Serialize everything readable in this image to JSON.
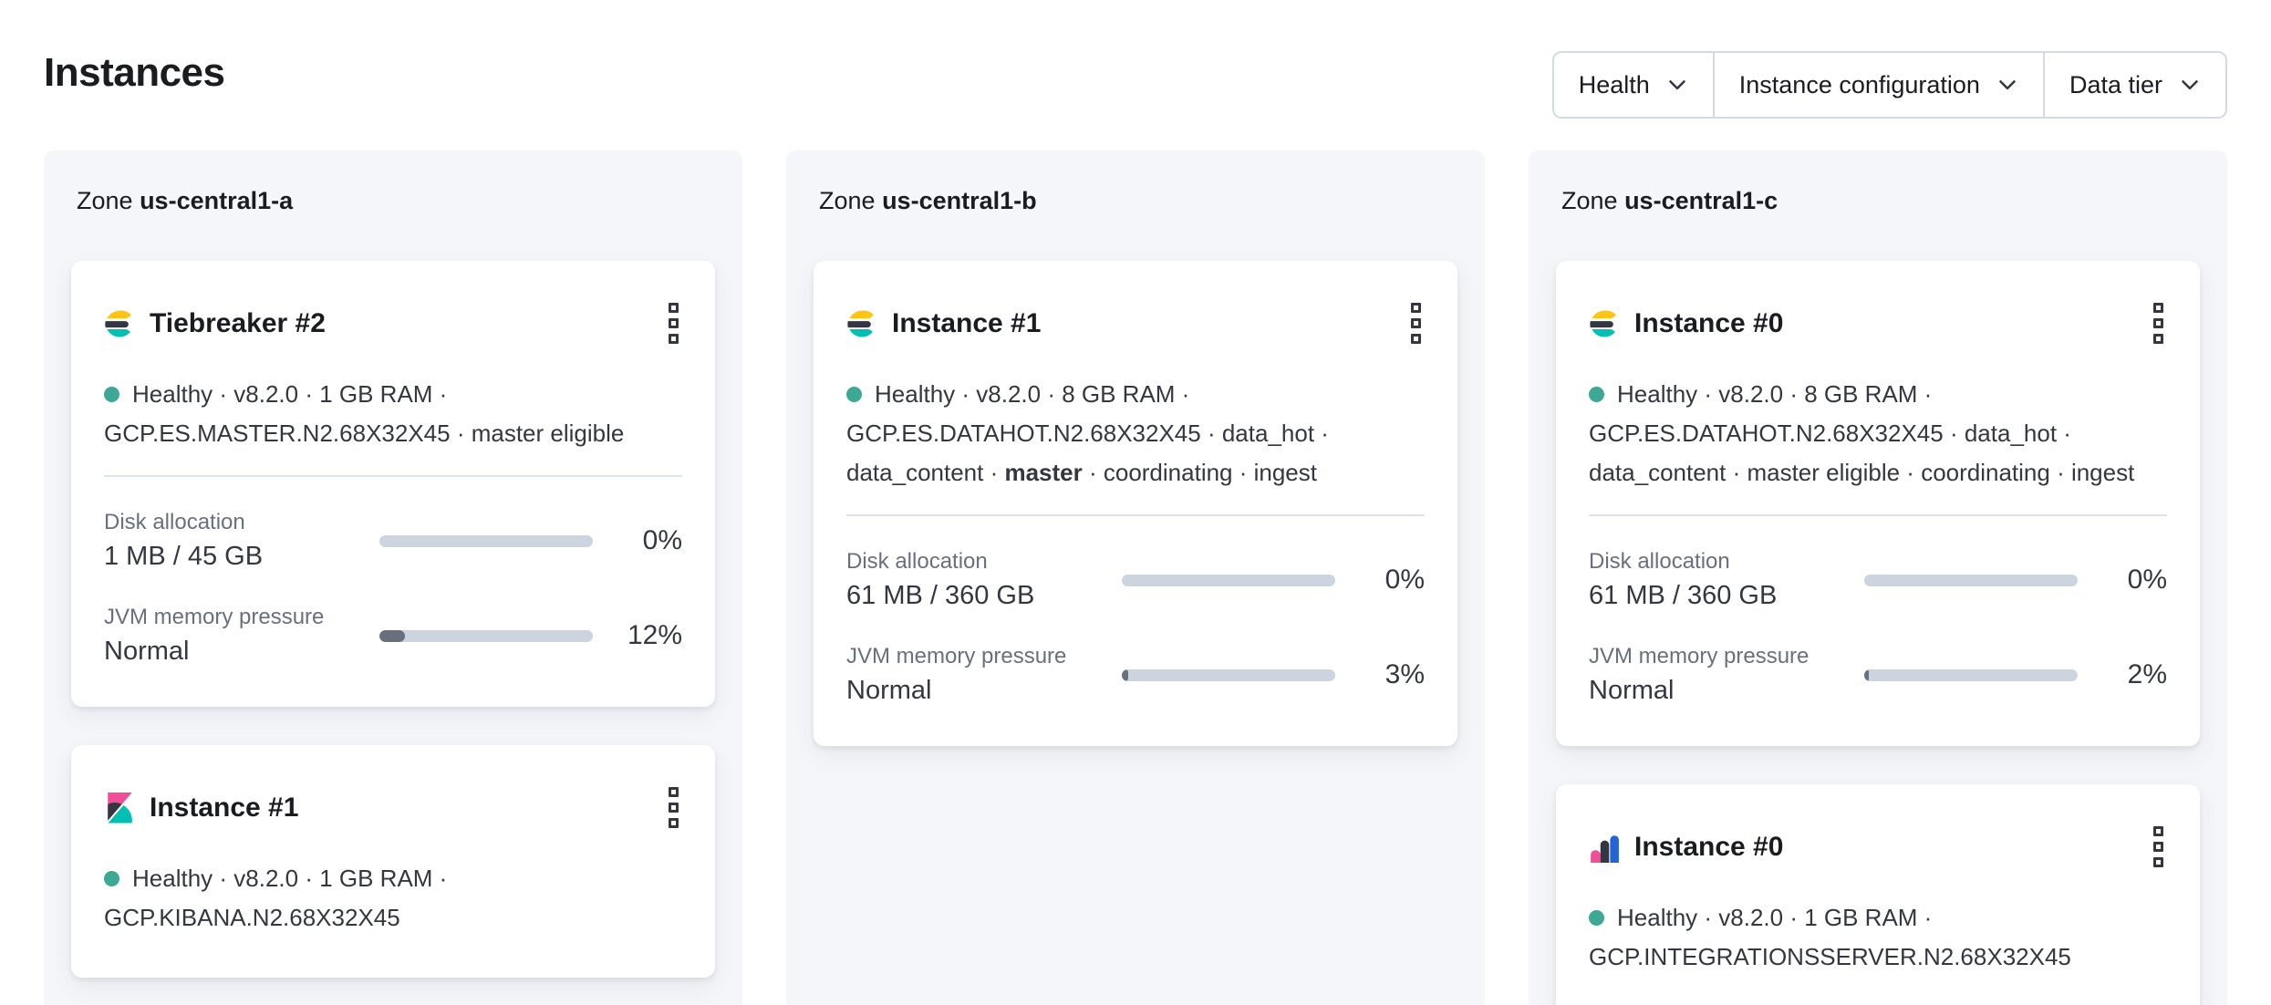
{
  "page": {
    "title": "Instances"
  },
  "filters": {
    "health": "Health",
    "instance_configuration": "Instance configuration",
    "data_tier": "Data tier"
  },
  "zones": [
    {
      "label": "Zone",
      "name": "us-central1-a",
      "cards": [
        {
          "icon": "elasticsearch-logo",
          "title": "Tiebreaker #2",
          "meta1": "Healthy · v8.2.0 · 1 GB RAM ·",
          "meta2": "GCP.ES.MASTER.N2.68X32X45 · master eligible",
          "disk": {
            "label": "Disk allocation",
            "value": "1 MB / 45 GB",
            "percent_label": "0%",
            "percent": 0
          },
          "jvm": {
            "label": "JVM memory pressure",
            "value": "Normal",
            "percent_label": "12%",
            "percent": 12
          }
        },
        {
          "icon": "kibana-logo",
          "title": "Instance #1",
          "meta1": "Healthy · v8.2.0 · 1 GB RAM ·",
          "meta2": "GCP.KIBANA.N2.68X32X45"
        }
      ]
    },
    {
      "label": "Zone",
      "name": "us-central1-b",
      "cards": [
        {
          "icon": "elasticsearch-logo",
          "title": "Instance #1",
          "meta1": "Healthy · v8.2.0 · 8 GB RAM ·",
          "meta2": "GCP.ES.DATAHOT.N2.68X32X45 · data_hot ·",
          "meta3_pre": "data_content · ",
          "meta3_bold": "master",
          "meta3_post": " · coordinating · ingest",
          "disk": {
            "label": "Disk allocation",
            "value": "61 MB / 360 GB",
            "percent_label": "0%",
            "percent": 0
          },
          "jvm": {
            "label": "JVM memory pressure",
            "value": "Normal",
            "percent_label": "3%",
            "percent": 3
          }
        }
      ]
    },
    {
      "label": "Zone",
      "name": "us-central1-c",
      "cards": [
        {
          "icon": "elasticsearch-logo",
          "title": "Instance #0",
          "meta1": "Healthy · v8.2.0 · 8 GB RAM ·",
          "meta2": "GCP.ES.DATAHOT.N2.68X32X45 · data_hot ·",
          "meta3": "data_content · master eligible · coordinating · ingest",
          "disk": {
            "label": "Disk allocation",
            "value": "61 MB / 360 GB",
            "percent_label": "0%",
            "percent": 0
          },
          "jvm": {
            "label": "JVM memory pressure",
            "value": "Normal",
            "percent_label": "2%",
            "percent": 2
          }
        },
        {
          "icon": "integrations-server-logo",
          "title": "Instance #0",
          "meta1": "Healthy · v8.2.0 · 1 GB RAM ·",
          "meta2": "GCP.INTEGRATIONSSERVER.N2.68X32X45"
        }
      ]
    }
  ],
  "colors": {
    "health_dot": "#3da894",
    "progress_track": "#ccd4e0",
    "progress_fill": "#69707d",
    "panel_background": "#f4f6fa",
    "border": "#d3dae6",
    "logo_yellow": "#fec514",
    "logo_teal": "#00bfb3",
    "logo_pink": "#f04e98",
    "logo_dark": "#343741",
    "logo_blue": "#2563d8"
  }
}
